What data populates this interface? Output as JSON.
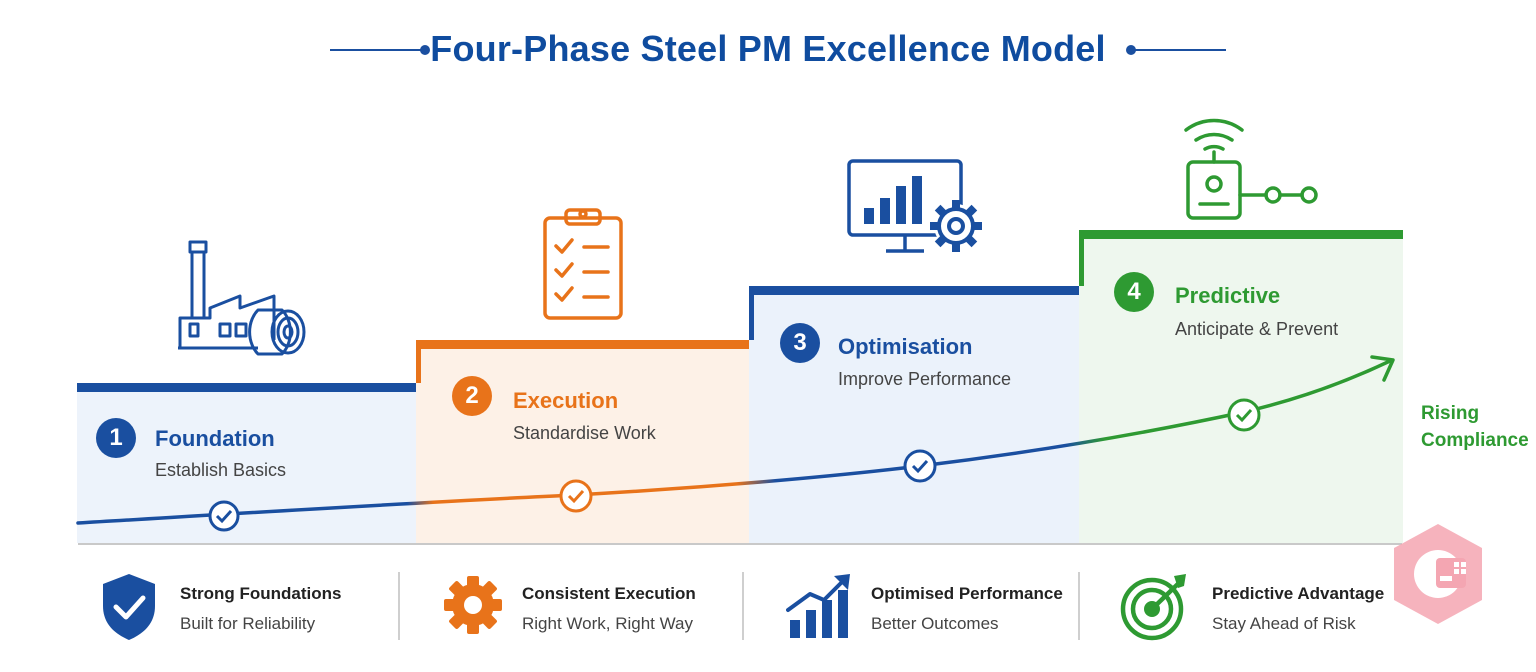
{
  "title": "Four-Phase Steel PM Excellence Model",
  "colors": {
    "blue": "#1a4fa0",
    "orange": "#e8731a",
    "green": "#2e9a32"
  },
  "phases": [
    {
      "number": "1",
      "title": "Foundation",
      "subtitle": "Establish Basics",
      "icon": "factory-icon"
    },
    {
      "number": "2",
      "title": "Execution",
      "subtitle": "Standardise Work",
      "icon": "clipboard-checklist-icon"
    },
    {
      "number": "3",
      "title": "Optimisation",
      "subtitle": "Improve Performance",
      "icon": "monitor-chart-gear-icon"
    },
    {
      "number": "4",
      "title": "Predictive",
      "subtitle": "Anticipate & Prevent",
      "icon": "sensor-wifi-icon"
    }
  ],
  "trend_label_line1": "Rising",
  "trend_label_line2": "Compliance",
  "features": [
    {
      "title": "Strong Foundations",
      "subtitle": "Built for Reliability",
      "icon": "shield-check-icon"
    },
    {
      "title": "Consistent Execution",
      "subtitle": "Right Work, Right Way",
      "icon": "gear-icon"
    },
    {
      "title": "Optimised Performance",
      "subtitle": "Better Outcomes",
      "icon": "bar-chart-trend-icon"
    },
    {
      "title": "Predictive Advantage",
      "subtitle": "Stay Ahead of Risk",
      "icon": "target-arrow-icon"
    }
  ]
}
